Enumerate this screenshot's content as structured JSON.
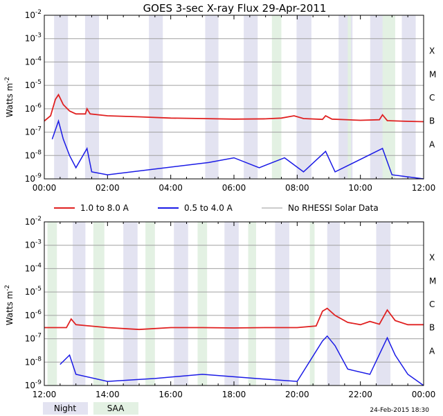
{
  "title": "GOES 3-sec X-ray Flux   29-Apr-2011",
  "ylabel": "Watts m",
  "ylabel_exp": "-2",
  "footer_date": "24-Feb-2015 18:30",
  "legend": {
    "series": [
      {
        "name": "1.0 to 8.0 A",
        "color": "#e02020"
      },
      {
        "name": "0.5 to 4.0 A",
        "color": "#1a1ae6"
      },
      {
        "name": "No RHESSI Solar Data",
        "color": "#999999"
      }
    ],
    "night_label": "Night",
    "saa_label": "SAA",
    "night_color": "#e3e3f1",
    "saa_color": "#e3f1e3"
  },
  "chart_data": [
    {
      "type": "line",
      "name": "panel-1",
      "x_unit": "hour",
      "xlim": [
        0,
        12
      ],
      "x_ticks": [
        0,
        2,
        4,
        6,
        8,
        10,
        12
      ],
      "x_tick_labels": [
        "00:00",
        "02:00",
        "04:00",
        "06:00",
        "08:00",
        "10:00",
        "12:00"
      ],
      "y_scale": "log",
      "ylim": [
        1e-09,
        0.01
      ],
      "y_ticks": [
        -9,
        -8,
        -7,
        -6,
        -5,
        -4,
        -3,
        -2
      ],
      "y_tick_labels": [
        "-9",
        "-8",
        "-7",
        "-6",
        "-5",
        "-4",
        "-3",
        "-2"
      ],
      "class_labels": [
        "A",
        "B",
        "C",
        "M",
        "X"
      ],
      "night": [
        [
          0.31,
          0.75
        ],
        [
          3.31,
          3.75
        ],
        [
          6.31,
          6.75
        ],
        [
          9.31,
          9.75
        ],
        [
          10.31,
          10.75
        ],
        [
          11.31,
          11.75
        ],
        [
          1.29,
          1.73
        ],
        [
          5.09,
          5.51
        ],
        [
          7.98,
          8.45
        ]
      ],
      "saa": [
        [
          10.7,
          11.1
        ],
        [
          7.2,
          7.5
        ],
        [
          9.6,
          9.7
        ]
      ],
      "long": [
        {
          "x": 0.0,
          "y": 3e-07
        },
        {
          "x": 0.2,
          "y": 5e-07
        },
        {
          "x": 0.35,
          "y": 2.5e-06
        },
        {
          "x": 0.45,
          "y": 4e-06
        },
        {
          "x": 0.6,
          "y": 1.5e-06
        },
        {
          "x": 0.8,
          "y": 8e-07
        },
        {
          "x": 1.0,
          "y": 6e-07
        },
        {
          "x": 1.3,
          "y": 6e-07
        },
        {
          "x": 1.35,
          "y": 1e-06
        },
        {
          "x": 1.45,
          "y": 6e-07
        },
        {
          "x": 2.0,
          "y": 5e-07
        },
        {
          "x": 3.0,
          "y": 4.5e-07
        },
        {
          "x": 4.0,
          "y": 4e-07
        },
        {
          "x": 5.0,
          "y": 3.8e-07
        },
        {
          "x": 6.0,
          "y": 3.6e-07
        },
        {
          "x": 7.0,
          "y": 3.7e-07
        },
        {
          "x": 7.5,
          "y": 4e-07
        },
        {
          "x": 7.9,
          "y": 5e-07
        },
        {
          "x": 8.2,
          "y": 3.8e-07
        },
        {
          "x": 8.8,
          "y": 3.5e-07
        },
        {
          "x": 8.9,
          "y": 5e-07
        },
        {
          "x": 9.1,
          "y": 3.6e-07
        },
        {
          "x": 10.0,
          "y": 3.2e-07
        },
        {
          "x": 10.6,
          "y": 3.4e-07
        },
        {
          "x": 10.7,
          "y": 5.5e-07
        },
        {
          "x": 10.85,
          "y": 3.1e-07
        },
        {
          "x": 11.5,
          "y": 2.9e-07
        },
        {
          "x": 12.0,
          "y": 2.8e-07
        }
      ],
      "short": [
        {
          "x": 0.25,
          "y": 5e-08
        },
        {
          "x": 0.45,
          "y": 3e-07
        },
        {
          "x": 0.6,
          "y": 5e-08
        },
        {
          "x": 0.8,
          "y": 1e-08
        },
        {
          "x": 1.0,
          "y": 3e-09
        },
        {
          "x": 1.35,
          "y": 2e-08
        },
        {
          "x": 1.5,
          "y": 2e-09
        },
        {
          "x": 2.0,
          "y": 1.5e-09
        },
        {
          "x": 5.2,
          "y": 5e-09
        },
        {
          "x": 6.0,
          "y": 8e-09
        },
        {
          "x": 6.8,
          "y": 3e-09
        },
        {
          "x": 7.6,
          "y": 8e-09
        },
        {
          "x": 8.2,
          "y": 2e-09
        },
        {
          "x": 8.9,
          "y": 1.5e-08
        },
        {
          "x": 9.2,
          "y": 2e-09
        },
        {
          "x": 10.7,
          "y": 2e-08
        },
        {
          "x": 11.0,
          "y": 1.5e-09
        },
        {
          "x": 12.0,
          "y": 1e-09
        }
      ]
    },
    {
      "type": "line",
      "name": "panel-2",
      "x_unit": "hour",
      "xlim": [
        12,
        24
      ],
      "x_ticks": [
        12,
        14,
        16,
        18,
        20,
        22,
        24
      ],
      "x_tick_labels": [
        "12:00",
        "14:00",
        "16:00",
        "18:00",
        "20:00",
        "22:00",
        "00:00"
      ],
      "y_scale": "log",
      "ylim": [
        1e-09,
        0.01
      ],
      "y_ticks": [
        -9,
        -8,
        -7,
        -6,
        -5,
        -4,
        -3,
        -2
      ],
      "y_tick_labels": [
        "-9",
        "-8",
        "-7",
        "-6",
        "-5",
        "-4",
        "-3",
        "-2"
      ],
      "class_labels": [
        "A",
        "B",
        "C",
        "M",
        "X"
      ],
      "night": [
        [
          12.9,
          13.3
        ],
        [
          14.5,
          14.95
        ],
        [
          16.1,
          16.55
        ],
        [
          17.7,
          18.15
        ],
        [
          19.3,
          19.75
        ],
        [
          20.95,
          21.35
        ],
        [
          22.5,
          22.95
        ]
      ],
      "saa": [
        [
          12.1,
          12.4
        ],
        [
          13.55,
          13.9
        ],
        [
          15.2,
          15.5
        ],
        [
          16.85,
          17.15
        ],
        [
          18.45,
          18.7
        ],
        [
          20.4,
          20.55
        ]
      ],
      "long": [
        {
          "x": 12.0,
          "y": 3e-07
        },
        {
          "x": 12.7,
          "y": 3e-07
        },
        {
          "x": 12.85,
          "y": 7e-07
        },
        {
          "x": 13.0,
          "y": 4e-07
        },
        {
          "x": 14.0,
          "y": 3e-07
        },
        {
          "x": 15.0,
          "y": 2.5e-07
        },
        {
          "x": 16.0,
          "y": 3e-07
        },
        {
          "x": 17.0,
          "y": 3e-07
        },
        {
          "x": 18.0,
          "y": 2.9e-07
        },
        {
          "x": 19.0,
          "y": 3e-07
        },
        {
          "x": 20.0,
          "y": 3e-07
        },
        {
          "x": 20.6,
          "y": 3.5e-07
        },
        {
          "x": 20.8,
          "y": 1.5e-06
        },
        {
          "x": 20.95,
          "y": 2e-06
        },
        {
          "x": 21.2,
          "y": 1e-06
        },
        {
          "x": 21.6,
          "y": 5e-07
        },
        {
          "x": 22.0,
          "y": 4e-07
        },
        {
          "x": 22.3,
          "y": 5.5e-07
        },
        {
          "x": 22.6,
          "y": 4.2e-07
        },
        {
          "x": 22.85,
          "y": 1.7e-06
        },
        {
          "x": 23.1,
          "y": 6e-07
        },
        {
          "x": 23.5,
          "y": 4e-07
        },
        {
          "x": 24.0,
          "y": 4e-07
        }
      ],
      "short": [
        {
          "x": 12.5,
          "y": 8e-09
        },
        {
          "x": 12.8,
          "y": 2e-08
        },
        {
          "x": 13.0,
          "y": 3e-09
        },
        {
          "x": 14.0,
          "y": 1.5e-09
        },
        {
          "x": 15.5,
          "y": 2e-09
        },
        {
          "x": 17.0,
          "y": 3e-09
        },
        {
          "x": 18.7,
          "y": 2e-09
        },
        {
          "x": 20.0,
          "y": 1.5e-09
        },
        {
          "x": 20.8,
          "y": 8e-08
        },
        {
          "x": 20.95,
          "y": 1.3e-07
        },
        {
          "x": 21.2,
          "y": 5e-08
        },
        {
          "x": 21.6,
          "y": 5e-09
        },
        {
          "x": 22.3,
          "y": 3e-09
        },
        {
          "x": 22.85,
          "y": 1.1e-07
        },
        {
          "x": 23.1,
          "y": 2e-08
        },
        {
          "x": 23.5,
          "y": 3e-09
        },
        {
          "x": 24.0,
          "y": 1e-09
        }
      ]
    }
  ]
}
